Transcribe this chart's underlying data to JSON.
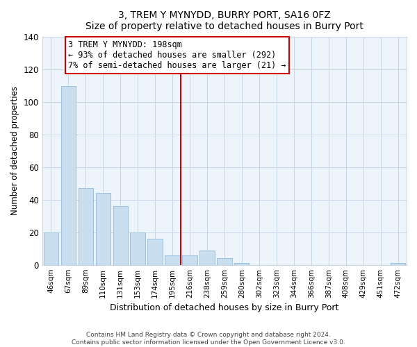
{
  "title": "3, TREM Y MYNYDD, BURRY PORT, SA16 0FZ",
  "subtitle": "Size of property relative to detached houses in Burry Port",
  "xlabel": "Distribution of detached houses by size in Burry Port",
  "ylabel": "Number of detached properties",
  "bar_labels": [
    "46sqm",
    "67sqm",
    "89sqm",
    "110sqm",
    "131sqm",
    "153sqm",
    "174sqm",
    "195sqm",
    "216sqm",
    "238sqm",
    "259sqm",
    "280sqm",
    "302sqm",
    "323sqm",
    "344sqm",
    "366sqm",
    "387sqm",
    "408sqm",
    "429sqm",
    "451sqm",
    "472sqm"
  ],
  "bar_values": [
    20,
    110,
    47,
    44,
    36,
    20,
    16,
    6,
    6,
    9,
    4,
    1,
    0,
    0,
    0,
    0,
    0,
    0,
    0,
    0,
    1
  ],
  "bar_color": "#c9dff0",
  "bar_edge_color": "#a0c4e0",
  "vline_x": 7.5,
  "vline_color": "#cc0000",
  "annotation_text": "3 TREM Y MYNYDD: 198sqm\n← 93% of detached houses are smaller (292)\n7% of semi-detached houses are larger (21) →",
  "annotation_box_color": "#ffffff",
  "annotation_box_edge_color": "#cc0000",
  "ylim": [
    0,
    140
  ],
  "yticks": [
    0,
    20,
    40,
    60,
    80,
    100,
    120,
    140
  ],
  "footer_line1": "Contains HM Land Registry data © Crown copyright and database right 2024.",
  "footer_line2": "Contains public sector information licensed under the Open Government Licence v3.0.",
  "background_color": "#ffffff",
  "plot_bg_color": "#eef4fb",
  "grid_color": "#c8d8e8"
}
